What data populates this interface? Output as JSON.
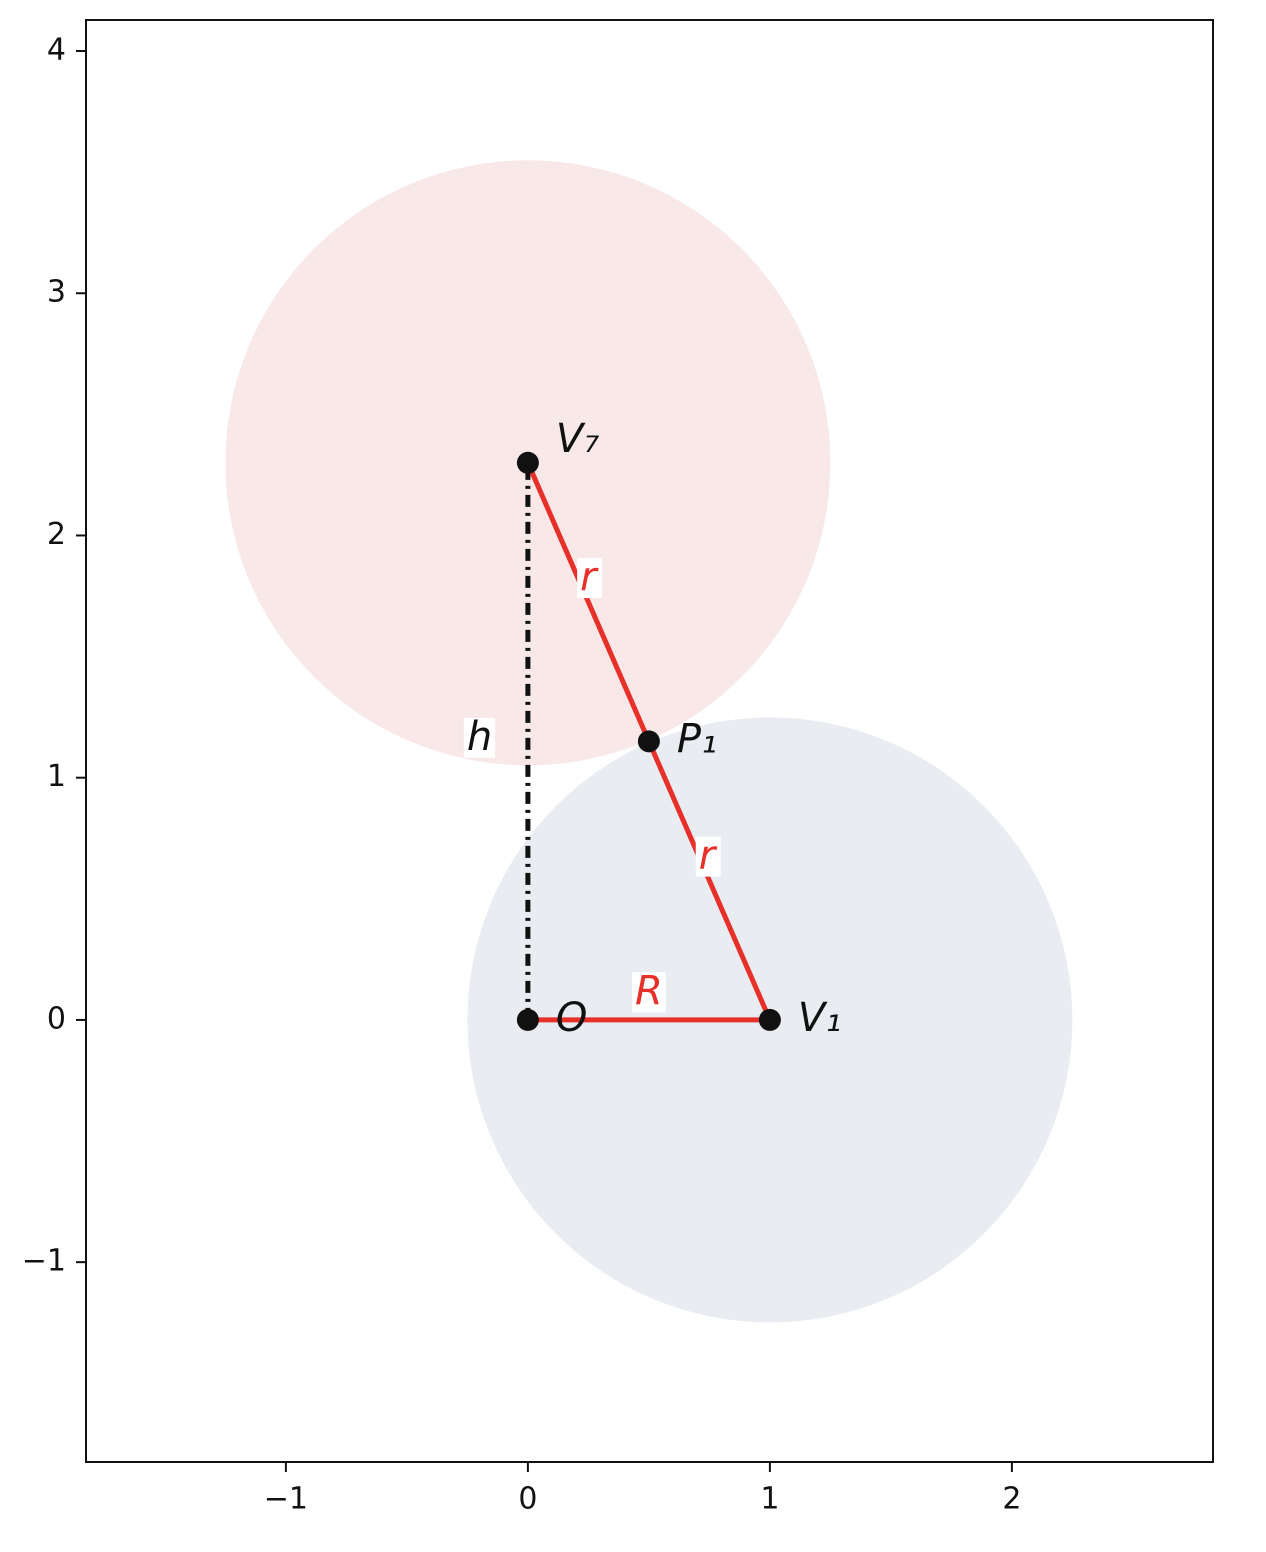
{
  "chart_data": {
    "type": "geometry",
    "xlim": [
      -1.826,
      2.831
    ],
    "ylim": [
      -1.825,
      4.128
    ],
    "xticks": [
      {
        "value": -1,
        "label": "−1"
      },
      0,
      1,
      2
    ],
    "yticks": [
      {
        "value": -1,
        "label": "−1"
      },
      0,
      1,
      2,
      3,
      4
    ],
    "circles": [
      {
        "x": 1,
        "y": 0,
        "r": 1.25,
        "color": "#e9ecf1"
      },
      {
        "x": 0,
        "y": 2.3,
        "r": 1.25,
        "color": "#f8e8e7"
      }
    ],
    "lines": [
      {
        "x": [
          0,
          0
        ],
        "y": [
          0,
          2.3
        ],
        "color": "#111111",
        "style": "dashdot"
      },
      {
        "x": [
          0,
          1
        ],
        "y": [
          0,
          0
        ],
        "color": "#e8302a",
        "style": "solid"
      },
      {
        "x": [
          1,
          0
        ],
        "y": [
          0,
          2.3
        ],
        "color": "#e8302a",
        "style": "solid"
      }
    ],
    "points": [
      {
        "name": "O",
        "x": 0,
        "y": 0
      },
      {
        "name": "V₁",
        "x": 1,
        "y": 0
      },
      {
        "name": "V₇",
        "x": 0,
        "y": 2.3
      },
      {
        "name": "P₁",
        "x": 0.5,
        "y": 1.15
      }
    ],
    "annotations": [
      {
        "text": "r",
        "x": 0.25,
        "y": 1.82,
        "color": "#e8302a"
      },
      {
        "text": "r",
        "x": 0.74,
        "y": 0.67,
        "color": "#e8302a"
      },
      {
        "text": "R",
        "x": 0.5,
        "y": 0.11,
        "color": "#e8302a"
      },
      {
        "text": "h",
        "x": -0.2,
        "y": 1.16,
        "color": "#111111"
      }
    ],
    "point_color": "#111111"
  }
}
